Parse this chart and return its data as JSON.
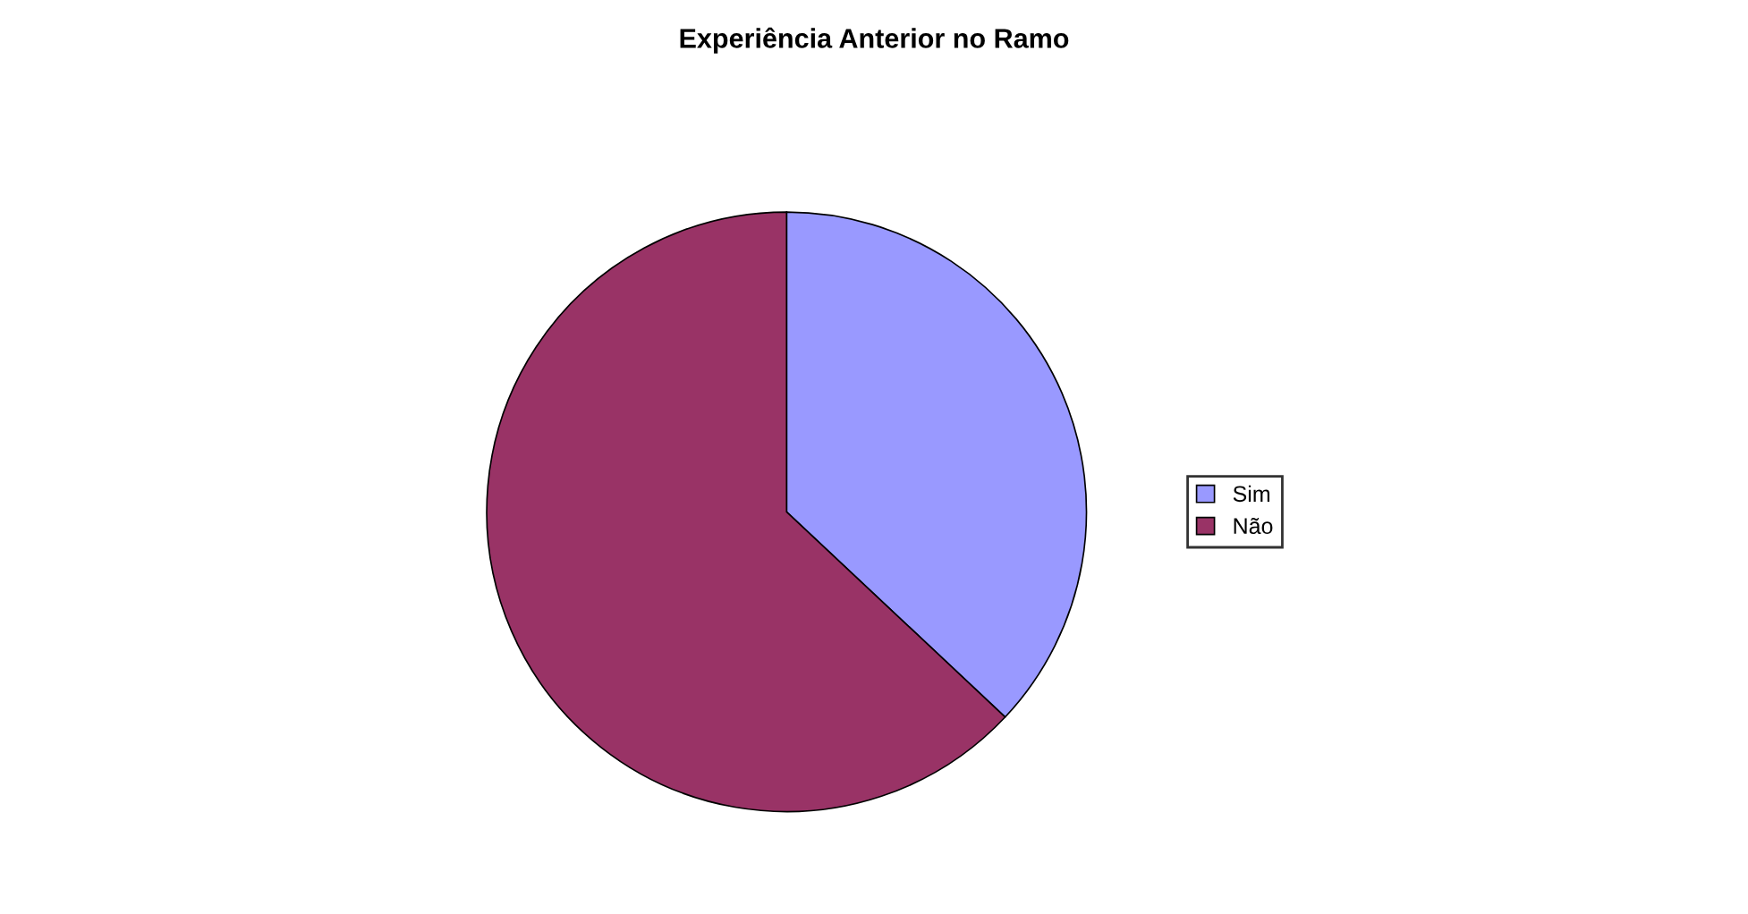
{
  "chart_data": {
    "type": "pie",
    "title": "Experiência Anterior no Ramo",
    "categories": [
      "Sim",
      "Não"
    ],
    "values": [
      37,
      63
    ],
    "colors": [
      "#9999ff",
      "#993366"
    ],
    "legend": "right"
  }
}
